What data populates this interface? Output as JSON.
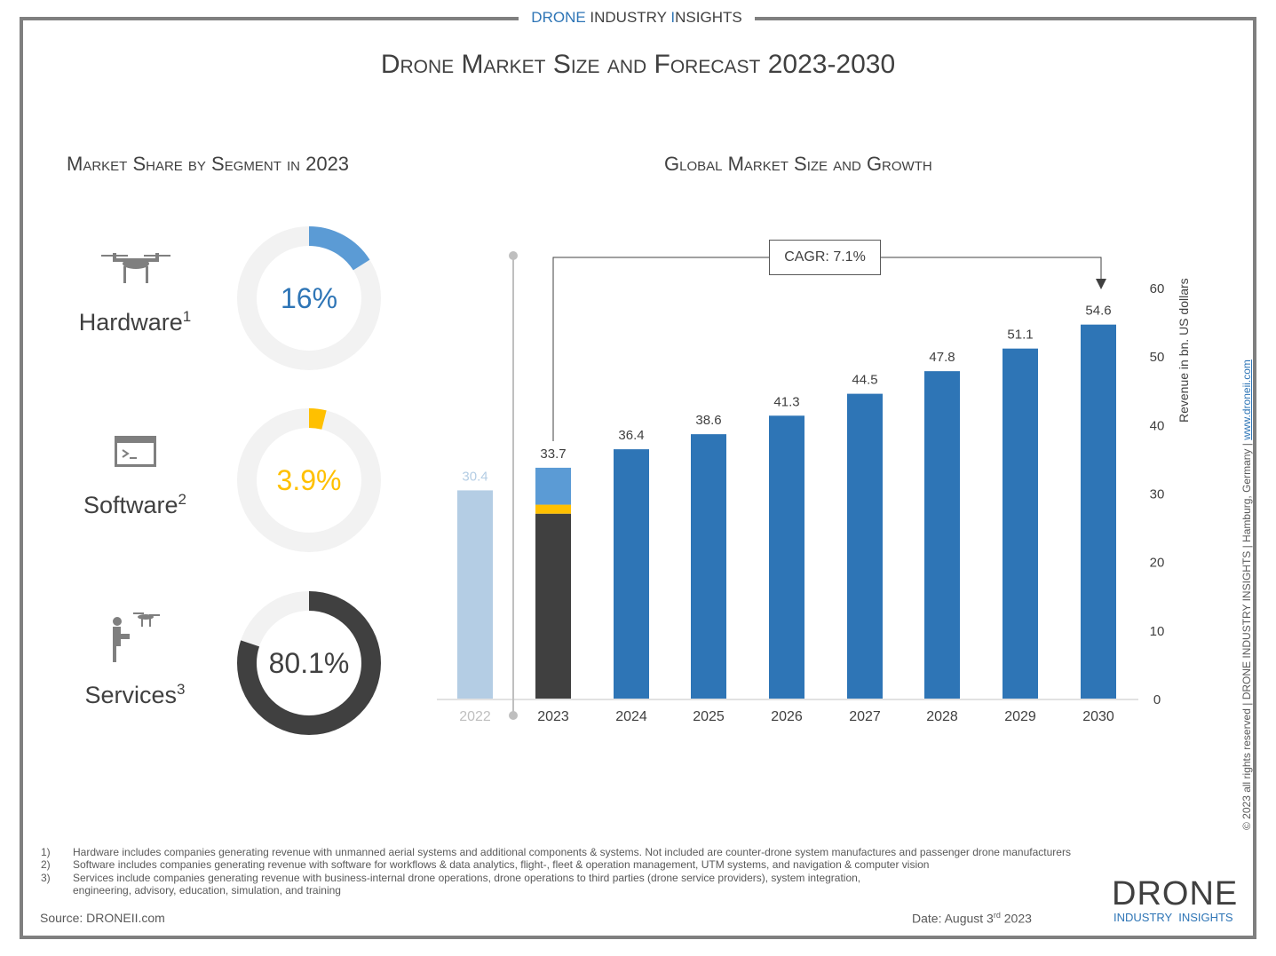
{
  "header": {
    "brand_prefix": "D",
    "brand_1": "RONE ",
    "brand_2": "INDUSTRY ",
    "brand_3": "I",
    "brand_4": "NSIGHTS",
    "title": "Drone Market Size and Forecast 2023-2030"
  },
  "left": {
    "title": "Market Share by Segment in 2023",
    "segments": [
      {
        "name": "Hardware",
        "note": "1",
        "value_label": "16%",
        "share": 16,
        "color": "#5b9bd5",
        "icon": "drone-icon"
      },
      {
        "name": "Software",
        "note": "2",
        "value_label": "3.9%",
        "share": 3.9,
        "color": "#ffc000",
        "icon": "terminal-window-icon"
      },
      {
        "name": "Services",
        "note": "3",
        "value_label": "80.1%",
        "share": 80.1,
        "color": "#404040",
        "icon": "drone-pilot-icon"
      }
    ]
  },
  "chart_data": {
    "type": "bar",
    "title": "Global Market Size and Growth",
    "ylabel": "Revenue in bn. US dollars",
    "ylim": [
      0,
      60
    ],
    "yticks": [
      0,
      10,
      20,
      30,
      40,
      50,
      60
    ],
    "categories": [
      "2022",
      "2023",
      "2024",
      "2025",
      "2026",
      "2027",
      "2028",
      "2029",
      "2030"
    ],
    "values": [
      30.4,
      33.7,
      36.4,
      38.6,
      41.3,
      44.5,
      47.8,
      51.1,
      54.6
    ],
    "value_labels": [
      "30.4",
      "33.7",
      "36.4",
      "38.6",
      "41.3",
      "44.5",
      "47.8",
      "51.1",
      "54.6"
    ],
    "colors": {
      "past": "#b4cde4",
      "main": "#2e75b6"
    },
    "annotation": "CAGR: 7.1%",
    "grid": false,
    "legend": "none"
  },
  "footnotes": [
    {
      "n": "1)",
      "text": "Hardware includes companies generating revenue with unmanned aerial systems and additional components & systems. Not included are counter-drone system manufactures and passenger drone manufacturers"
    },
    {
      "n": "2)",
      "text": "Software includes companies generating revenue with software for workflows & data analytics, flight-, fleet & operation management, UTM systems, and navigation & computer vision"
    },
    {
      "n": "3)",
      "text": "Services include companies generating revenue with business-internal drone operations, drone operations to third parties (drone service providers), system integration,"
    },
    {
      "n": "",
      "text": "engineering, advisory, education, simulation, and training"
    }
  ],
  "source": "Source: DRONEII.com",
  "date_prefix": "Date: August 3",
  "date_sup": "rd",
  "date_year": " 2023",
  "logo": {
    "line1": "DRONE",
    "line2": "INDUSTRY  INSIGHTS"
  },
  "side": {
    "text": "© 2023 all rights reserved  |  DRONE INDUSTRY INSIGHTS  |  Hamburg, Germany  |  ",
    "link": "www.droneii.com"
  }
}
